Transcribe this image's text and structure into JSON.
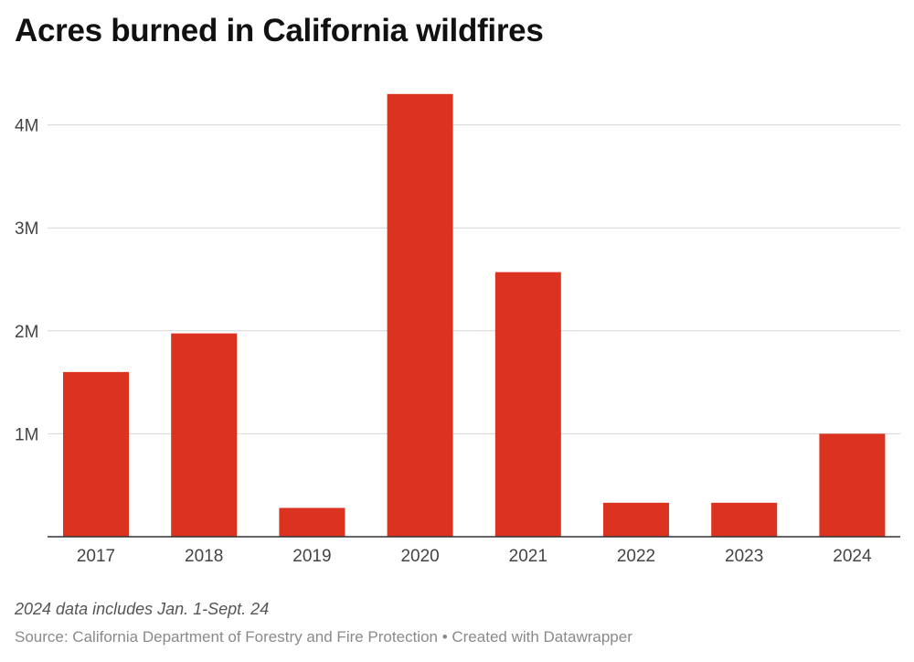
{
  "chart_data": {
    "type": "bar",
    "title": "Acres burned in California wildfires",
    "categories": [
      "2017",
      "2018",
      "2019",
      "2020",
      "2021",
      "2022",
      "2023",
      "2024"
    ],
    "values": [
      1600000,
      1975000,
      280000,
      4300000,
      2570000,
      330000,
      330000,
      1000000
    ],
    "ylim": [
      0,
      4300000
    ],
    "yticks": [
      1000000,
      2000000,
      3000000,
      4000000
    ],
    "ytick_labels": [
      "1M",
      "2M",
      "3M",
      "4M"
    ],
    "xlabel": "",
    "ylabel": "",
    "grid": true,
    "bar_color": "#dc3220"
  },
  "footer": {
    "note": "2024 data includes Jan. 1-Sept. 24",
    "source": "Source: California Department of Forestry and Fire Protection • Created with Datawrapper"
  }
}
